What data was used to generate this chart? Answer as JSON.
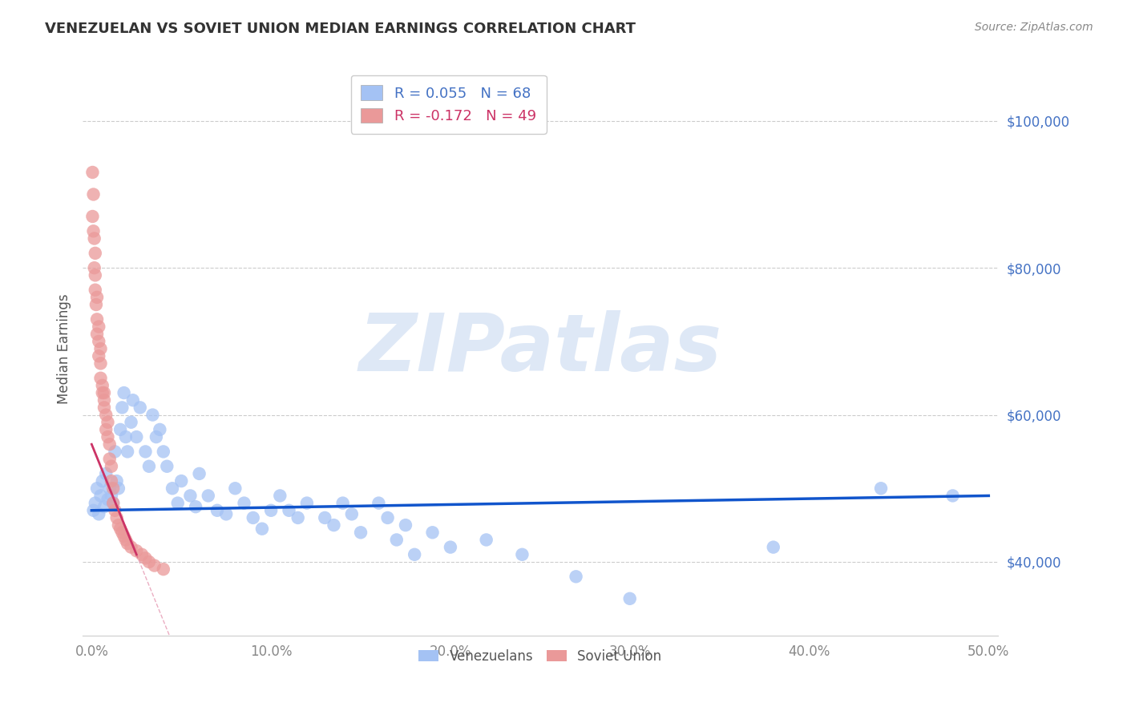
{
  "title": "VENEZUELAN VS SOVIET UNION MEDIAN EARNINGS CORRELATION CHART",
  "source": "Source: ZipAtlas.com",
  "ylabel": "Median Earnings",
  "watermark": "ZIPatlas",
  "venezuelans": {
    "label": "Venezuelans",
    "R": 0.055,
    "N": 68,
    "color": "#a4c2f4",
    "line_color": "#1155cc",
    "x": [
      0.001,
      0.002,
      0.003,
      0.004,
      0.005,
      0.006,
      0.007,
      0.008,
      0.009,
      0.01,
      0.011,
      0.012,
      0.013,
      0.014,
      0.015,
      0.016,
      0.017,
      0.018,
      0.019,
      0.02,
      0.022,
      0.023,
      0.025,
      0.027,
      0.03,
      0.032,
      0.034,
      0.036,
      0.038,
      0.04,
      0.042,
      0.045,
      0.048,
      0.05,
      0.055,
      0.058,
      0.06,
      0.065,
      0.07,
      0.075,
      0.08,
      0.085,
      0.09,
      0.095,
      0.1,
      0.105,
      0.11,
      0.115,
      0.12,
      0.13,
      0.135,
      0.14,
      0.145,
      0.15,
      0.16,
      0.165,
      0.17,
      0.175,
      0.18,
      0.19,
      0.2,
      0.22,
      0.24,
      0.27,
      0.3,
      0.38,
      0.44,
      0.48
    ],
    "y": [
      47000,
      48000,
      50000,
      46500,
      49000,
      51000,
      47500,
      52000,
      48500,
      50000,
      49000,
      48000,
      55000,
      51000,
      50000,
      58000,
      61000,
      63000,
      57000,
      55000,
      59000,
      62000,
      57000,
      61000,
      55000,
      53000,
      60000,
      57000,
      58000,
      55000,
      53000,
      50000,
      48000,
      51000,
      49000,
      47500,
      52000,
      49000,
      47000,
      46500,
      50000,
      48000,
      46000,
      44500,
      47000,
      49000,
      47000,
      46000,
      48000,
      46000,
      45000,
      48000,
      46500,
      44000,
      48000,
      46000,
      43000,
      45000,
      41000,
      44000,
      42000,
      43000,
      41000,
      38000,
      35000,
      42000,
      50000,
      49000
    ]
  },
  "soviet_union": {
    "label": "Soviet Union",
    "R": -0.172,
    "N": 49,
    "color": "#ea9999",
    "line_color": "#cc3366",
    "x": [
      0.0005,
      0.0005,
      0.001,
      0.001,
      0.0015,
      0.0015,
      0.002,
      0.002,
      0.002,
      0.0025,
      0.003,
      0.003,
      0.003,
      0.004,
      0.004,
      0.004,
      0.005,
      0.005,
      0.005,
      0.006,
      0.006,
      0.007,
      0.007,
      0.007,
      0.008,
      0.008,
      0.009,
      0.009,
      0.01,
      0.01,
      0.011,
      0.011,
      0.012,
      0.012,
      0.013,
      0.014,
      0.015,
      0.016,
      0.017,
      0.018,
      0.019,
      0.02,
      0.022,
      0.025,
      0.028,
      0.03,
      0.032,
      0.035,
      0.04
    ],
    "y": [
      93000,
      87000,
      85000,
      90000,
      80000,
      84000,
      79000,
      82000,
      77000,
      75000,
      76000,
      73000,
      71000,
      70000,
      68000,
      72000,
      67000,
      65000,
      69000,
      64000,
      63000,
      62000,
      61000,
      63000,
      60000,
      58000,
      57000,
      59000,
      56000,
      54000,
      53000,
      51000,
      50000,
      48000,
      47000,
      46000,
      45000,
      44500,
      44000,
      43500,
      43000,
      42500,
      42000,
      41500,
      41000,
      40500,
      40000,
      39500,
      39000
    ]
  },
  "xlim": [
    -0.005,
    0.505
  ],
  "ylim": [
    30000,
    108000
  ],
  "yticks": [
    40000,
    60000,
    80000,
    100000
  ],
  "ytick_labels": [
    "$40,000",
    "$60,000",
    "$80,000",
    "$100,000"
  ],
  "xtick_labels": [
    "0.0%",
    "10.0%",
    "20.0%",
    "30.0%",
    "40.0%",
    "50.0%"
  ],
  "xticks": [
    0.0,
    0.1,
    0.2,
    0.3,
    0.4,
    0.5
  ],
  "grid_color": "#cccccc",
  "bg_color": "#ffffff",
  "title_color": "#333333",
  "axis_label_color": "#555555",
  "ytick_color": "#4472c4",
  "xtick_color": "#888888",
  "source_color": "#888888",
  "legend_r_color_blue": "#4472c4",
  "legend_r_color_pink": "#cc3366"
}
